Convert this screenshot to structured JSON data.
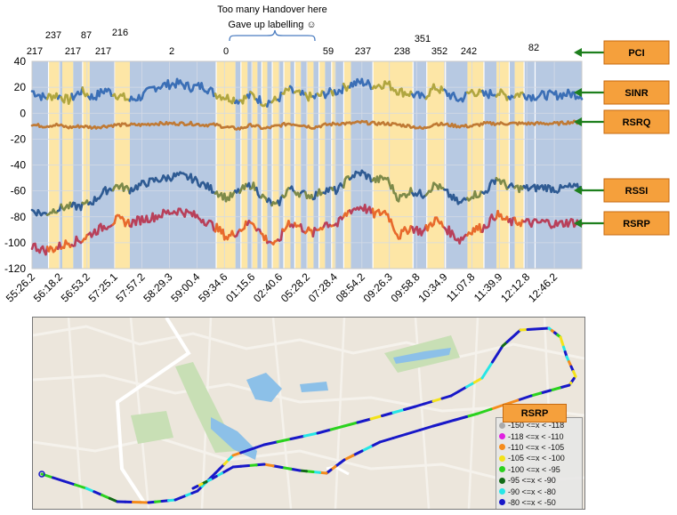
{
  "annotation": {
    "line1": "Too many Handover here",
    "line2": "Gave up labelling ☺"
  },
  "callouts": [
    "PCI",
    "SINR",
    "RSRQ",
    "RSSI",
    "RSRP"
  ],
  "colors": {
    "band_blue": "#b7c9e2",
    "band_yellow": "#fde6a6",
    "grid": "#d4dae6",
    "callout_fill": "#f5a03c",
    "arrow": "#1d7f1d",
    "sinr_blue": "#3b6fb6",
    "sinr_olive": "#b0a640",
    "rsrq": "#c07a35",
    "rssi_blue": "#2f5b93",
    "rssi_olive": "#7d8a4a",
    "rsrp_red": "#b8405a",
    "rsrp_orange": "#e86a2c"
  },
  "chart_data": {
    "type": "line",
    "ylim": [
      -120,
      40
    ],
    "yticks": [
      40,
      20,
      0,
      -20,
      -40,
      -60,
      -80,
      -100,
      -120
    ],
    "xticks": [
      "55:26.2",
      "56:18.2",
      "56:53.2",
      "57:25.1",
      "57:57.2",
      "58:29.3",
      "59:00.4",
      "59:34.6",
      "01:15.6",
      "02:40.6",
      "05:28.2",
      "07:28.4",
      "08:54.2",
      "09:26.3",
      "09:58.8",
      "10:34.9",
      "11:07.8",
      "11:39.9",
      "12:12.8",
      "12:46.2"
    ],
    "pci_labels": [
      "217",
      "237",
      "217",
      "87",
      "217",
      "216",
      "2",
      "0",
      "59",
      "237",
      "238",
      "351",
      "352",
      "242",
      "82"
    ],
    "series": [
      {
        "name": "SINR",
        "values": [
          17,
          12,
          14,
          10,
          17,
          12,
          18,
          14,
          10,
          13,
          20,
          22,
          23,
          20,
          21,
          15,
          12,
          10,
          14,
          8,
          10,
          18,
          14,
          12,
          15,
          17,
          22,
          24,
          21,
          23,
          17,
          15,
          12,
          20,
          15,
          10,
          17,
          14,
          16,
          13,
          15,
          13,
          14,
          14,
          15,
          14
        ]
      },
      {
        "name": "RSRQ",
        "values": [
          -9,
          -10,
          -9,
          -11,
          -10,
          -11,
          -10,
          -9,
          -9,
          -9,
          -8,
          -8,
          -8,
          -8,
          -9,
          -9,
          -11,
          -12,
          -9,
          -12,
          -10,
          -8,
          -9,
          -11,
          -9,
          -8,
          -8,
          -7,
          -8,
          -8,
          -9,
          -10,
          -12,
          -8,
          -9,
          -10,
          -10,
          -8,
          -8,
          -8,
          -8,
          -8,
          -8,
          -8,
          -7,
          -7
        ]
      },
      {
        "name": "RSSI",
        "values": [
          -75,
          -78,
          -74,
          -72,
          -72,
          -68,
          -60,
          -56,
          -59,
          -55,
          -52,
          -50,
          -48,
          -50,
          -55,
          -60,
          -66,
          -60,
          -55,
          -66,
          -72,
          -58,
          -62,
          -64,
          -59,
          -60,
          -49,
          -46,
          -52,
          -50,
          -66,
          -60,
          -63,
          -55,
          -62,
          -70,
          -63,
          -62,
          -50,
          -57,
          -58,
          -58,
          -57,
          -59,
          -57,
          -58
        ]
      },
      {
        "name": "RSRP",
        "values": [
          -102,
          -106,
          -104,
          -100,
          -98,
          -92,
          -87,
          -82,
          -85,
          -82,
          -80,
          -77,
          -75,
          -78,
          -82,
          -88,
          -96,
          -90,
          -83,
          -96,
          -102,
          -84,
          -88,
          -93,
          -85,
          -86,
          -75,
          -72,
          -78,
          -76,
          -95,
          -88,
          -92,
          -82,
          -90,
          -98,
          -90,
          -88,
          -78,
          -84,
          -84,
          -85,
          -84,
          -86,
          -84,
          -85
        ]
      }
    ]
  },
  "map": {
    "legend_title": "RSRP",
    "legend_items": [
      {
        "label": "-150 <=x < -118",
        "color": "#aaaaaa"
      },
      {
        "label": "-118 <=x < -110",
        "color": "#e020e0"
      },
      {
        "label": "-110 <=x < -105",
        "color": "#f58c1c"
      },
      {
        "label": "-105 <=x < -100",
        "color": "#f3e21a"
      },
      {
        "label": "-100 <=x < -95",
        "color": "#2bd21e"
      },
      {
        "label": "-95 <=x < -90",
        "color": "#126b16"
      },
      {
        "label": "-90 <=x < -80",
        "color": "#26e6e6"
      },
      {
        "label": "-80 <=x < -50",
        "color": "#1818c8"
      }
    ]
  }
}
